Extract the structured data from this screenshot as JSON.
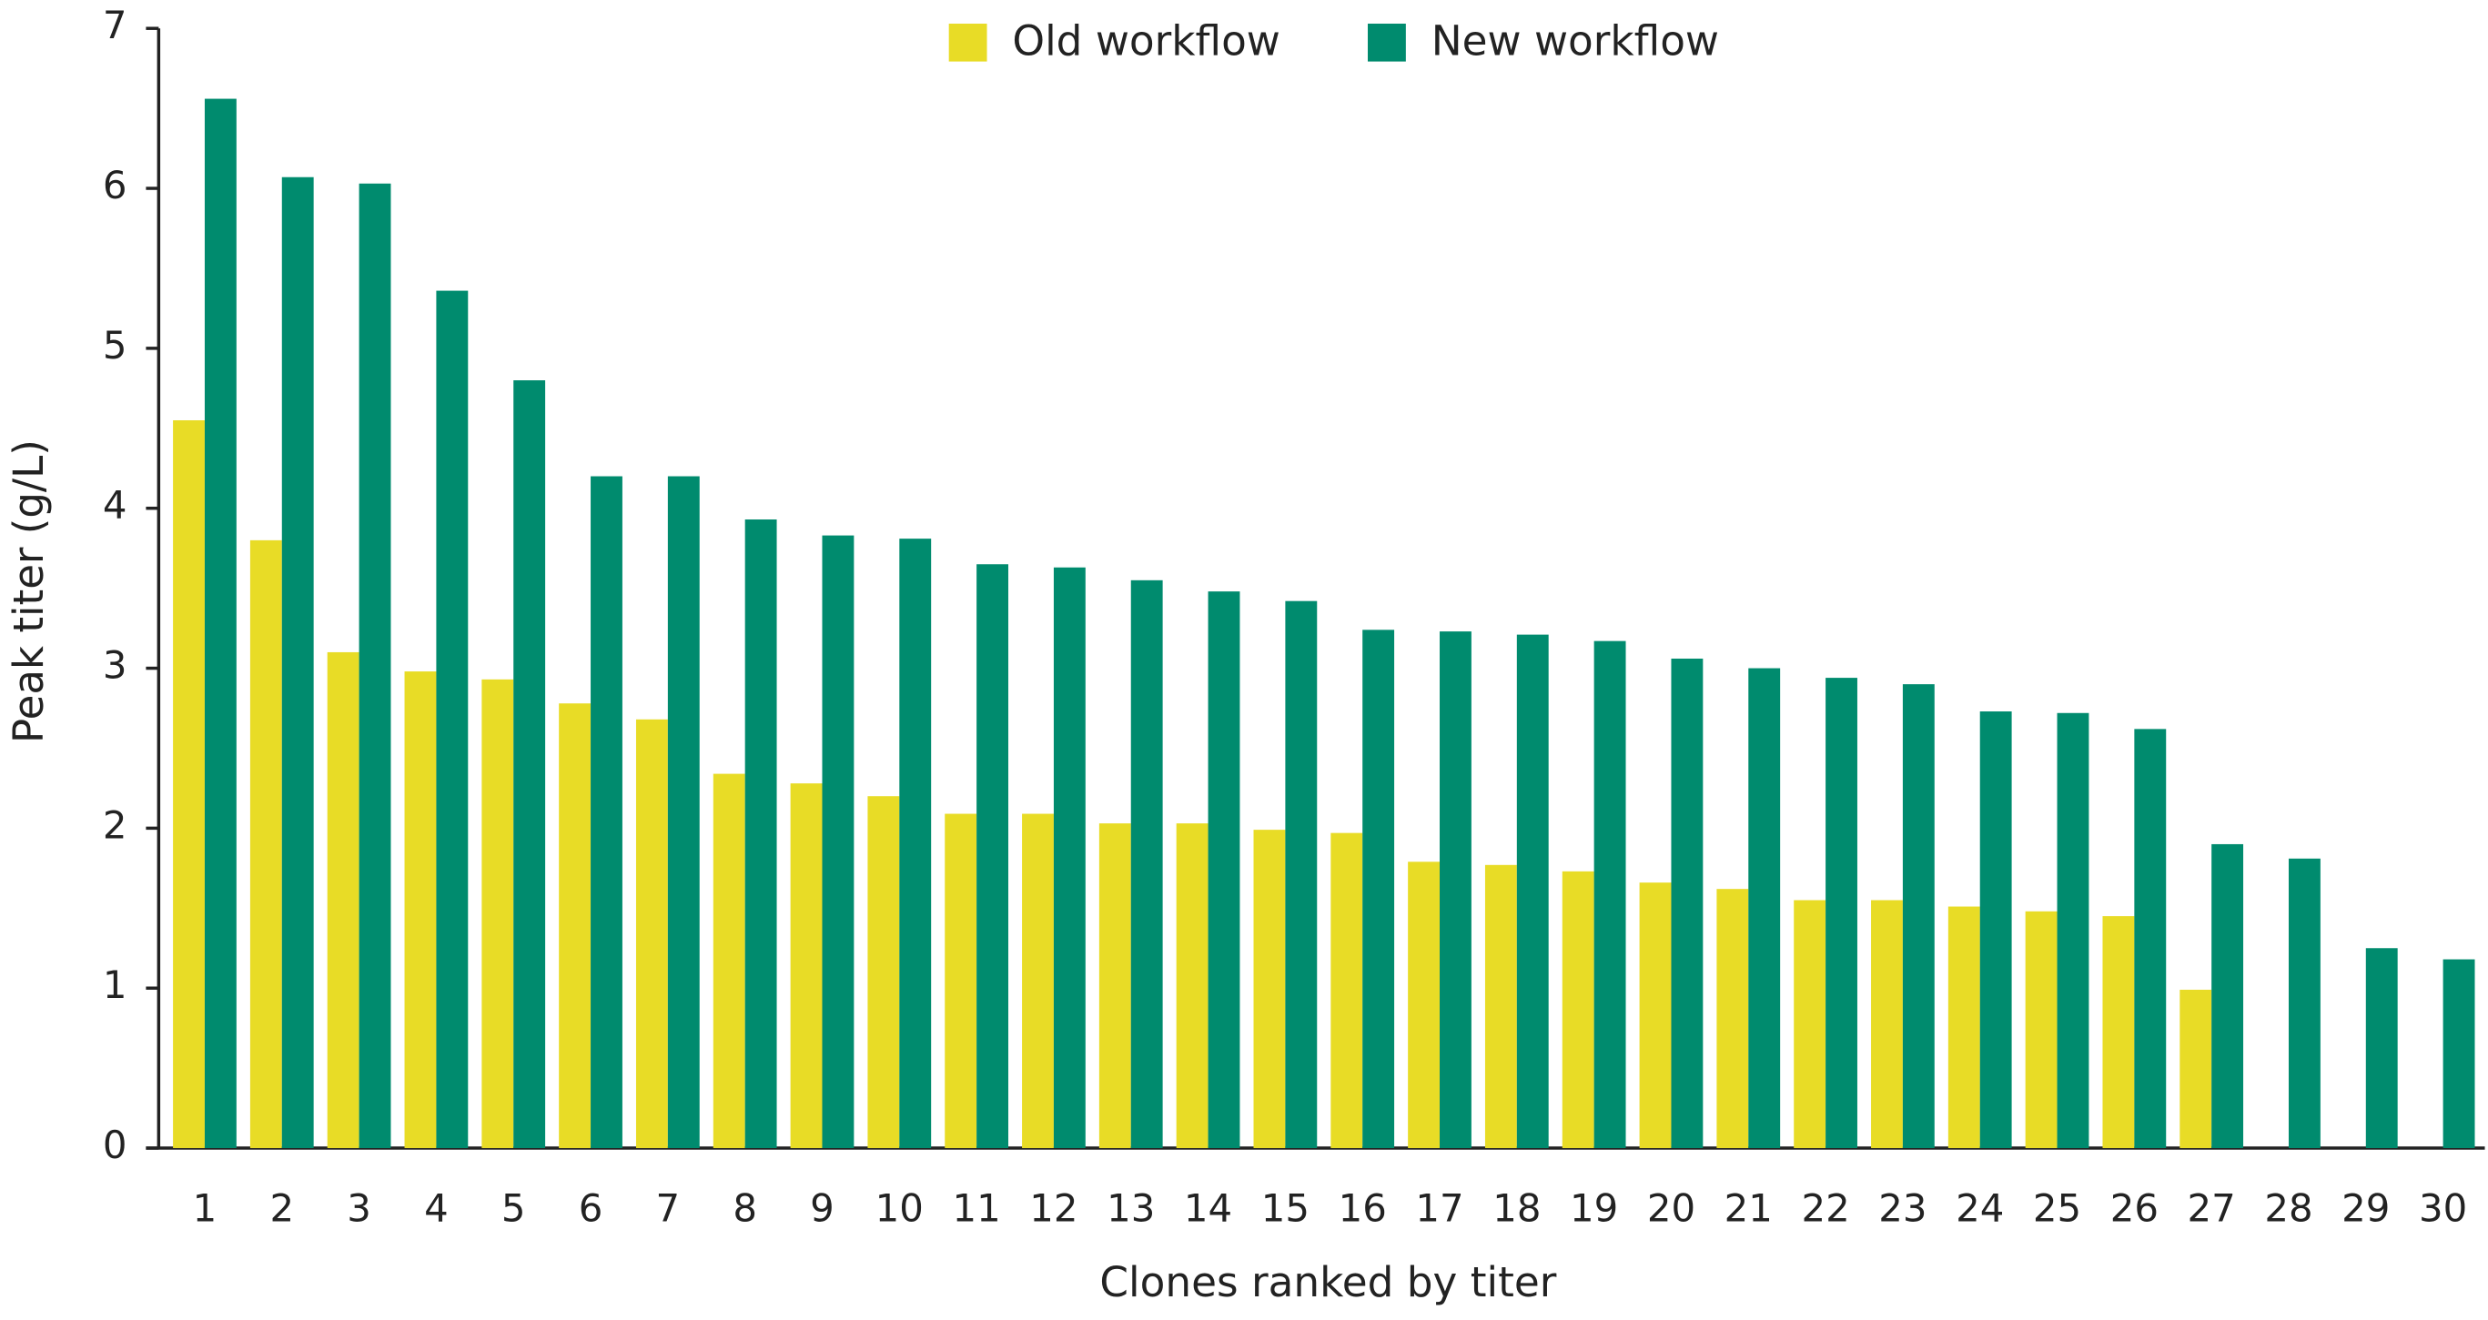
{
  "chart_data": {
    "type": "bar",
    "x_label": "Clones ranked by titer",
    "y_label": "Peak titer (g/L)",
    "categories": [
      "1",
      "2",
      "3",
      "4",
      "5",
      "6",
      "7",
      "8",
      "9",
      "10",
      "11",
      "12",
      "13",
      "14",
      "15",
      "16",
      "17",
      "18",
      "19",
      "20",
      "21",
      "22",
      "23",
      "24",
      "25",
      "26",
      "27",
      "28",
      "29",
      "30"
    ],
    "series": [
      {
        "name": "Old workflow",
        "color": "#e8dc26",
        "values": [
          4.55,
          3.8,
          3.1,
          2.98,
          2.93,
          2.78,
          2.68,
          2.34,
          2.28,
          2.2,
          2.09,
          2.09,
          2.03,
          2.03,
          1.99,
          1.97,
          1.79,
          1.77,
          1.73,
          1.66,
          1.62,
          1.55,
          1.55,
          1.51,
          1.48,
          1.45,
          0.99,
          null,
          null,
          null
        ]
      },
      {
        "name": "New workflow",
        "color": "#008b6e",
        "values": [
          6.56,
          6.07,
          6.03,
          5.36,
          4.8,
          4.2,
          4.2,
          3.93,
          3.83,
          3.81,
          3.65,
          3.63,
          3.55,
          3.48,
          3.42,
          3.24,
          3.23,
          3.21,
          3.17,
          3.06,
          3.0,
          2.94,
          2.9,
          2.73,
          2.72,
          2.62,
          1.9,
          1.81,
          1.25,
          1.18
        ]
      }
    ],
    "ylim": [
      0,
      7
    ],
    "yticks": [
      0,
      1,
      2,
      3,
      4,
      5,
      6,
      7
    ],
    "grid": false,
    "legend": "top"
  }
}
